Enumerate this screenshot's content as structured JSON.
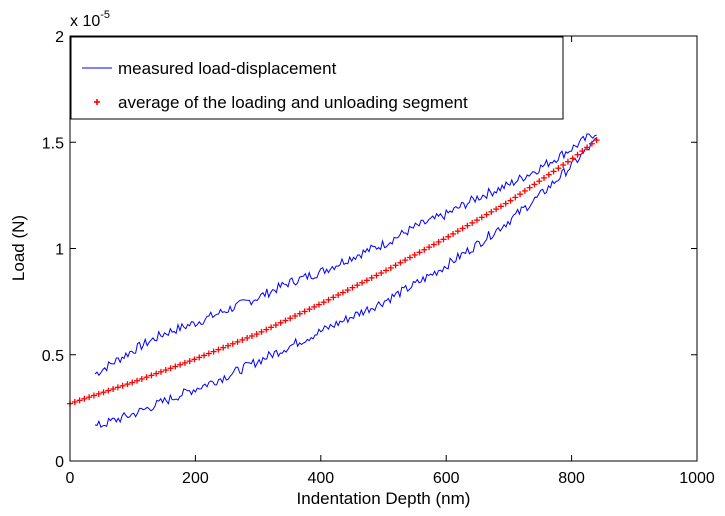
{
  "chart_data": {
    "type": "line",
    "xlabel": "Indentation Depth (nm)",
    "ylabel": "Load (N)",
    "xlim": [
      0,
      1000
    ],
    "ylim": [
      0,
      2
    ],
    "x_ticks": [
      "0",
      "200",
      "400",
      "600",
      "800",
      "1000"
    ],
    "y_ticks": [
      "0",
      "0.5",
      "1",
      "1.5",
      "2"
    ],
    "y_multiplier_base": "x 10",
    "y_multiplier_exp": "-5",
    "grid": false,
    "legend_position": "top-left",
    "legend": [
      {
        "label": "measured load-displacement",
        "color": "#0000ff",
        "marker": "line"
      },
      {
        "label": "average of the loading and unloading segment",
        "color": "#ff0000",
        "marker": "+"
      }
    ],
    "series": [
      {
        "name": "measured load-displacement",
        "segment": "loading (upper)",
        "color": "#0000ff",
        "x": [
          40,
          100,
          150,
          200,
          250,
          300,
          350,
          400,
          450,
          500,
          550,
          600,
          650,
          700,
          750,
          800,
          840
        ],
        "y": [
          0.41,
          0.52,
          0.6,
          0.65,
          0.71,
          0.77,
          0.84,
          0.89,
          0.96,
          1.02,
          1.1,
          1.16,
          1.24,
          1.3,
          1.38,
          1.47,
          1.55
        ]
      },
      {
        "name": "measured load-displacement",
        "segment": "unloading (lower)",
        "color": "#0000ff",
        "x": [
          40,
          100,
          150,
          200,
          250,
          300,
          350,
          400,
          450,
          500,
          550,
          600,
          650,
          700,
          750,
          800,
          840
        ],
        "y": [
          0.16,
          0.22,
          0.28,
          0.34,
          0.4,
          0.47,
          0.54,
          0.61,
          0.68,
          0.75,
          0.83,
          0.92,
          1.02,
          1.13,
          1.25,
          1.39,
          1.51
        ]
      },
      {
        "name": "average of the loading and unloading segment",
        "color": "#ff0000",
        "x": [
          0,
          100,
          200,
          300,
          400,
          500,
          600,
          700,
          800,
          840
        ],
        "y": [
          0.27,
          0.37,
          0.48,
          0.6,
          0.74,
          0.89,
          1.05,
          1.22,
          1.42,
          1.51
        ]
      }
    ]
  }
}
